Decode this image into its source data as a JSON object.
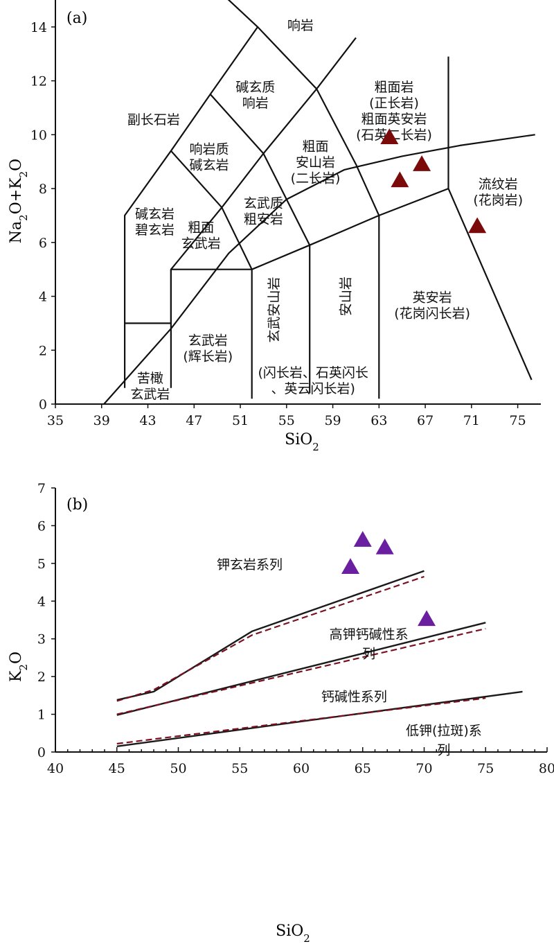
{
  "chart_data": [
    {
      "panel": "(a)",
      "type": "scatter",
      "xlabel": "SiO",
      "xlabel_sub": "2",
      "ylabel_parts": [
        "Na",
        "2",
        "O+K",
        "2",
        "O"
      ],
      "xlim": [
        35,
        77
      ],
      "ylim": [
        0,
        15
      ],
      "xticks": [
        35,
        39,
        43,
        47,
        51,
        55,
        59,
        63,
        67,
        71,
        75
      ],
      "yticks": [
        0,
        2,
        4,
        6,
        8,
        10,
        12,
        14
      ],
      "field_labels": [
        {
          "id": "rhyolite-top",
          "lines": [
            "响岩"
          ],
          "x": 56.2,
          "y": 13.9
        },
        {
          "id": "phonolite-basanite",
          "lines": [
            "碱玄质",
            "响岩"
          ],
          "x": 52.3,
          "y": 11.6
        },
        {
          "id": "trachyte",
          "lines": [
            "粗面岩",
            "(正长岩)",
            "粗面英安岩",
            "(石英二长岩)"
          ],
          "x": 64.3,
          "y": 11.6
        },
        {
          "id": "foidite",
          "lines": [
            "副长石岩"
          ],
          "x": 43.5,
          "y": 10.4
        },
        {
          "id": "tephriphonolite",
          "lines": [
            "响岩质",
            "碱玄岩"
          ],
          "x": 48.3,
          "y": 9.3
        },
        {
          "id": "trachyandesite",
          "lines": [
            "粗面",
            "安山岩",
            "(二长岩)"
          ],
          "x": 57.5,
          "y": 9.4
        },
        {
          "id": "basaltic-trachyandesite",
          "lines": [
            "玄武质",
            "粗安岩"
          ],
          "x": 53.0,
          "y": 7.3
        },
        {
          "id": "tephrite",
          "lines": [
            "碱玄岩",
            "碧玄岩"
          ],
          "x": 43.6,
          "y": 6.9
        },
        {
          "id": "trachybasalt",
          "lines": [
            "粗面",
            "玄武岩"
          ],
          "x": 47.6,
          "y": 6.4
        },
        {
          "id": "rhyolite",
          "lines": [
            "流纹岩",
            "(花岗岩)"
          ],
          "x": 73.3,
          "y": 8.0
        },
        {
          "id": "dacite",
          "lines": [
            "英安岩",
            "(花岗闪长岩)"
          ],
          "x": 67.6,
          "y": 3.8
        },
        {
          "id": "basalt",
          "lines": [
            "玄武岩",
            "(辉长岩)"
          ],
          "x": 48.2,
          "y": 2.2
        },
        {
          "id": "picrobasalt",
          "lines": [
            "苦橄",
            "玄武岩"
          ],
          "x": 43.2,
          "y": 0.8
        },
        {
          "id": "diorite",
          "lines": [
            "(闪长岩、石英闪长",
            "、英云闪长岩)"
          ],
          "x": 57.3,
          "y": 1.0
        },
        {
          "id": "andesite-text",
          "lines": [
            "安山岩"
          ],
          "x": 60.5,
          "y": 4.0
        },
        {
          "id": "basaltic-andesite-text",
          "lines": [
            "玄武安山岩"
          ],
          "x": 54.3,
          "y": 3.5
        }
      ],
      "series": [
        {
          "name": "samples",
          "marker": "triangle",
          "color": "#7b0a0a",
          "points": [
            [
              63.9,
              9.9
            ],
            [
              64.8,
              8.3
            ],
            [
              66.7,
              8.9
            ],
            [
              71.5,
              6.6
            ]
          ]
        }
      ]
    },
    {
      "panel": "(b)",
      "type": "scatter",
      "xlabel": "SiO",
      "xlabel_sub": "2",
      "ylabel_parts": [
        "K",
        "2",
        "O"
      ],
      "xlim": [
        40,
        80
      ],
      "ylim": [
        0,
        7
      ],
      "xticks": [
        40,
        45,
        50,
        55,
        60,
        65,
        70,
        75,
        80
      ],
      "yticks": [
        0,
        1,
        2,
        3,
        4,
        5,
        6,
        7
      ],
      "field_labels": [
        {
          "id": "shoshonite",
          "lines": [
            "钾玄岩系列"
          ],
          "x": 55.8,
          "y": 4.85
        },
        {
          "id": "high-k",
          "lines": [
            "高钾钙碱性系",
            "列"
          ],
          "x": 65.5,
          "y": 3.0
        },
        {
          "id": "calc-alkaline",
          "lines": [
            "钙碱性系列"
          ],
          "x": 64.3,
          "y": 1.35
        },
        {
          "id": "low-k",
          "lines": [
            "低钾(拉斑)系",
            "列"
          ],
          "x": 71.6,
          "y": 0.45
        }
      ],
      "series": [
        {
          "name": "boundary-solid-1",
          "style": "solid",
          "color": "#1a1a1a",
          "points": [
            [
              45,
              1.38
            ],
            [
              48,
              1.6
            ],
            [
              56,
              3.2
            ],
            [
              70,
              4.8
            ]
          ]
        },
        {
          "name": "boundary-dashed-1",
          "style": "dashed",
          "color": "#7a1020",
          "points": [
            [
              45,
              1.35
            ],
            [
              48,
              1.65
            ],
            [
              56,
              3.1
            ],
            [
              70,
              4.65
            ]
          ]
        },
        {
          "name": "boundary-solid-2",
          "style": "solid",
          "color": "#1a1a1a",
          "points": [
            [
              45,
              0.98
            ],
            [
              75,
              3.43
            ]
          ]
        },
        {
          "name": "boundary-dashed-2",
          "style": "dashed",
          "color": "#7a1020",
          "points": [
            [
              45,
              1.0
            ],
            [
              75,
              3.27
            ]
          ]
        },
        {
          "name": "boundary-solid-3",
          "style": "solid",
          "color": "#1a1a1a",
          "points": [
            [
              45,
              0.15
            ],
            [
              78,
              1.6
            ]
          ]
        },
        {
          "name": "boundary-dashed-3",
          "style": "dashed",
          "color": "#7a1020",
          "points": [
            [
              45,
              0.22
            ],
            [
              75,
              1.43
            ]
          ]
        },
        {
          "name": "samples",
          "marker": "triangle",
          "color": "#6a1fa0",
          "points": [
            [
              65.0,
              5.62
            ],
            [
              66.8,
              5.42
            ],
            [
              64.0,
              4.9
            ],
            [
              70.2,
              3.52
            ]
          ]
        }
      ]
    }
  ]
}
